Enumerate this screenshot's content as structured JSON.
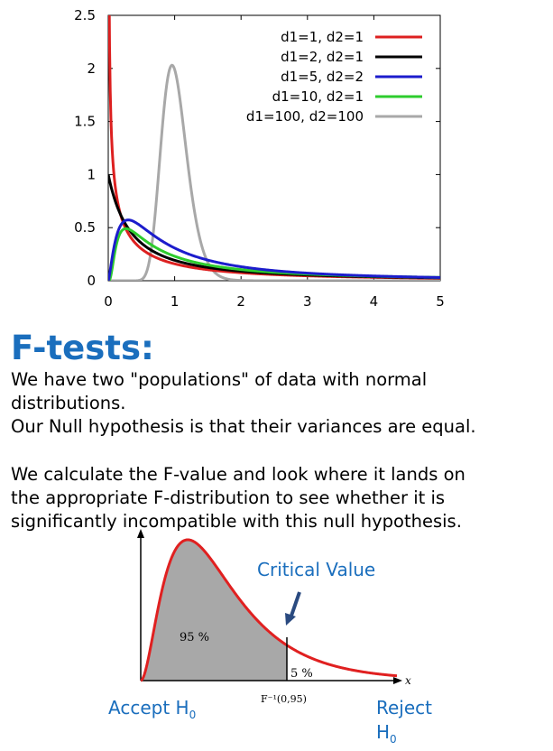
{
  "chart_data": {
    "type": "line",
    "title": "",
    "xlabel": "",
    "ylabel": "",
    "xlim": [
      0,
      5
    ],
    "ylim": [
      0,
      2.5
    ],
    "xticks": [
      "0",
      "1",
      "2",
      "3",
      "4",
      "5"
    ],
    "yticks": [
      "0",
      "0.5",
      "1",
      "1.5",
      "2",
      "2.5"
    ],
    "grid": false,
    "legend_position": "top-right",
    "series": [
      {
        "name": "d1=1, d2=1",
        "color": "#dd2020",
        "d1": 1,
        "d2": 1
      },
      {
        "name": "d1=2, d2=1",
        "color": "#000000",
        "d1": 2,
        "d2": 1
      },
      {
        "name": "d1=5, d2=2",
        "color": "#1c1ccc",
        "d1": 5,
        "d2": 2
      },
      {
        "name": "d1=10, d2=1",
        "color": "#2ecc2e",
        "d1": 10,
        "d2": 1
      },
      {
        "name": "d1=100, d2=100",
        "color": "#a8a8a8",
        "d1": 100,
        "d2": 100
      }
    ]
  },
  "content": {
    "title": "F-tests:",
    "lines": [
      "We have two \"populations\" of data with normal",
      "distributions.",
      "Our Null hypothesis is that their variances are equal.",
      "We calculate the F-value and look where it lands on",
      "the appropriate F-distribution to see whether it is",
      "significantly incompatible with this null hypothesis."
    ]
  },
  "diagram": {
    "critical_label": "Critical Value",
    "area_accept": "95 %",
    "area_reject": "5 %",
    "critical_point": "F⁻¹(0,95)",
    "x_axis_label": "x",
    "accept_label": "Accept H",
    "accept_sub": "0",
    "reject_label": "Reject",
    "reject_h": "H",
    "reject_sub": "0",
    "curve_color": "#e02020",
    "fill_color": "#a8a8a8",
    "arrow_color": "#2a4a80"
  }
}
